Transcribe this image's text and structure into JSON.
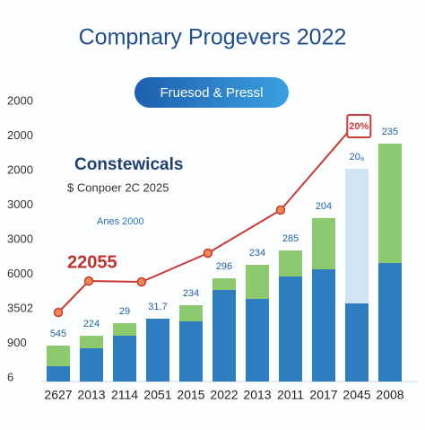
{
  "chart_data": {
    "type": "bar",
    "title": "Compnary Progevers 2022",
    "button": "Fruesod & Pressl",
    "categories": [
      "2627",
      "2013",
      "2114",
      "2051",
      "2015",
      "2022",
      "2013",
      "2011",
      "2017",
      "2045",
      "2008"
    ],
    "series": [
      {
        "color": "#2e7dc1",
        "values": [
          17,
          37,
          51,
          70,
          67,
          102,
          92,
          117,
          125,
          87,
          132
        ]
      },
      {
        "color": "#8dca6f",
        "values": [
          23,
          14,
          14,
          0,
          18,
          13,
          38,
          29,
          57,
          0,
          133
        ]
      },
      {
        "color": "#cfe5f5",
        "values": [
          0,
          0,
          0,
          0,
          0,
          0,
          0,
          0,
          0,
          150,
          0
        ]
      }
    ],
    "bar_labels": [
      "545",
      "224",
      "29",
      "31.7",
      "234",
      "296",
      "234",
      "285",
      "204",
      "20₆",
      "235"
    ],
    "ylim": [
      0,
      300
    ],
    "y_axis_labels": [
      "2000",
      "2000",
      "2000",
      "3000",
      "3000",
      "6000",
      "3502",
      "900",
      "6"
    ],
    "line": {
      "color": "#c83a32",
      "x": [
        0,
        0.92,
        2.51,
        4.51,
        6.7,
        8.9
      ],
      "values": [
        77,
        112,
        111,
        143,
        191,
        285
      ]
    },
    "annotations": [
      "Constewicals",
      "$ Conpoer 2C 2025",
      "Anes 2000",
      "22055",
      "20%"
    ]
  }
}
